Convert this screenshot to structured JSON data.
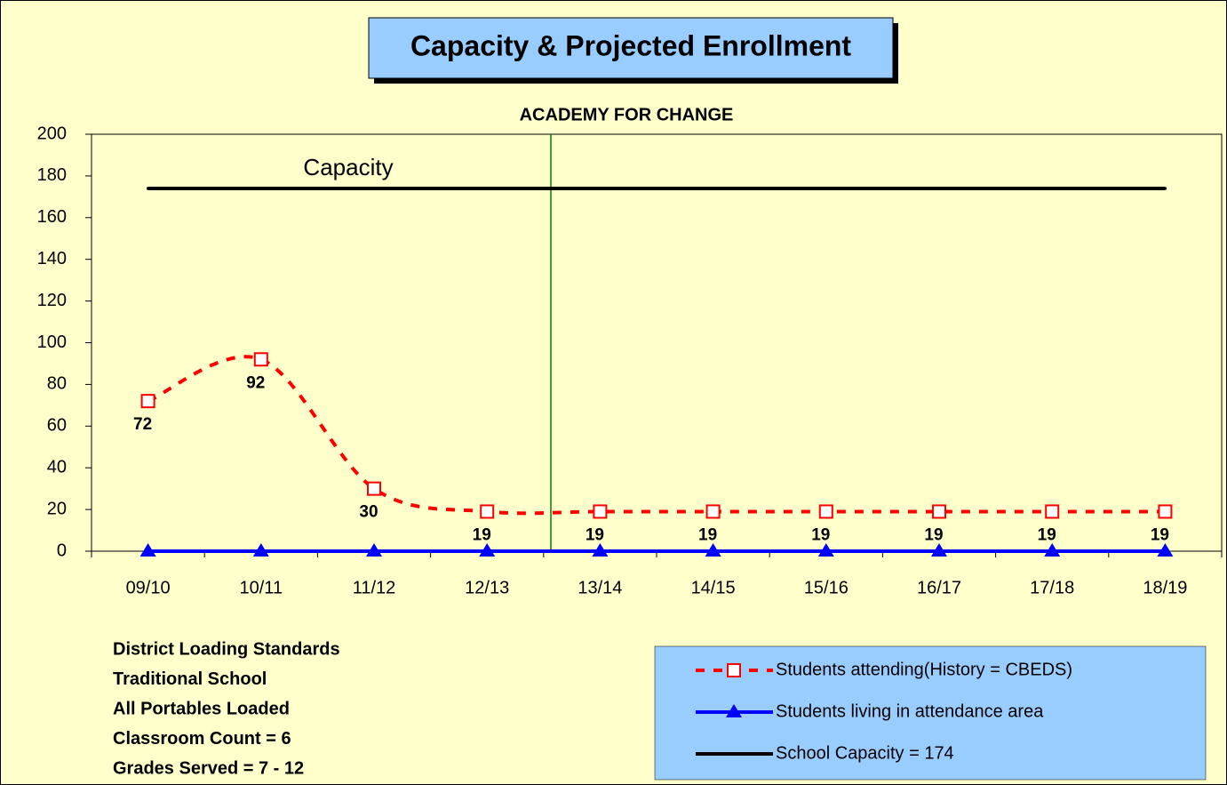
{
  "chart_data": {
    "type": "line",
    "title": "Capacity & Projected Enrollment",
    "subtitle": "ACADEMY FOR CHANGE",
    "annotation": "Capacity",
    "notes": [
      "District Loading Standards",
      "Traditional School",
      "All Portables Loaded",
      "Classroom Count  = 6",
      "Grades Served = 7 - 12"
    ],
    "categories": [
      "09/10",
      "10/11",
      "11/12",
      "12/13",
      "13/14",
      "14/15",
      "15/16",
      "16/17",
      "17/18",
      "18/19"
    ],
    "series": [
      {
        "name": "Students attending(History = CBEDS)",
        "color": "#ff0000",
        "dashed": true,
        "marker": "square",
        "smooth": true,
        "data_labels": true,
        "values": [
          72,
          92,
          30,
          19,
          19,
          19,
          19,
          19,
          19,
          19
        ]
      },
      {
        "name": "Students living in attendance area",
        "color": "#0000ff",
        "dashed": false,
        "marker": "triangle",
        "smooth": false,
        "data_labels": false,
        "values": [
          0,
          0,
          0,
          0,
          0,
          0,
          0,
          0,
          0,
          0
        ]
      },
      {
        "name": "School Capacity = 174",
        "color": "#000000",
        "dashed": false,
        "marker": "none",
        "smooth": false,
        "data_labels": false,
        "values": [
          174,
          174,
          174,
          174,
          174,
          174,
          174,
          174,
          174,
          174
        ]
      }
    ],
    "ylim": [
      0,
      200
    ],
    "yticks": [
      0,
      20,
      40,
      60,
      80,
      100,
      120,
      140,
      160,
      180,
      200
    ],
    "legend": "bottom-right"
  }
}
